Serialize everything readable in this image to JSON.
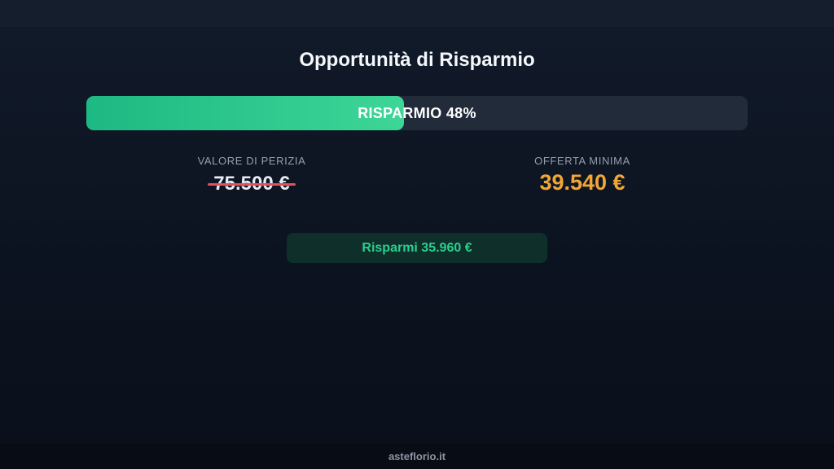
{
  "page": {
    "title": "Opportunità di Risparmio",
    "footer_text": "asteflorio.it"
  },
  "savings": {
    "percent": 48,
    "bar_label": "RISPARMIO 48%",
    "appraisal": {
      "label": "VALORE DI PERIZIA",
      "value": "75.500 €"
    },
    "minimum_offer": {
      "label": "OFFERTA MINIMA",
      "value": "39.540 €"
    },
    "badge_label": "Risparmi 35.960 €"
  },
  "colors": {
    "progress_gradient_start": "#1db983",
    "progress_gradient_end": "#3ed697",
    "progress_track": "#222b3a",
    "offer_orange": "#f2a735",
    "strike_red": "#e4505e",
    "badge_text_green": "#2bd08d",
    "badge_background": "#0f2f2b",
    "background_top": "#141e2d",
    "background_main": "#0c1320",
    "footer_background": "#080c15"
  }
}
